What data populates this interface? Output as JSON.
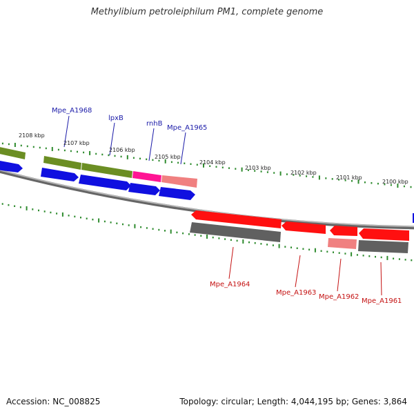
{
  "title": "Methylibium petroleiphilum PM1, complete genome",
  "footer": {
    "accession": "Accession: NC_008825",
    "summary": "Topology: circular; Length: 4,044,195 bp; Genes: 3,864"
  },
  "colors": {
    "backbone": "#808080",
    "tick": "#2e8b2e",
    "cds_forward": "#1010e0",
    "cds_reverse": "#ff1010",
    "gene_forward": "#6b8e23",
    "gene_reverse": "#606060",
    "rna": "#ff1493",
    "misc": "#f08080",
    "label_forward": "#1a1aa8",
    "label_reverse": "#c41010"
  },
  "kbp_labels": [
    "2108 kbp",
    "2107 kbp",
    "2106 kbp",
    "2105 kbp",
    "2104 kbp",
    "2103 kbp",
    "2102 kbp",
    "2101 kbp",
    "2100 kbp"
  ],
  "gene_labels_forward": [
    "Mpe_A1968",
    "lpxB",
    "rnhB",
    "Mpe_A1965"
  ],
  "gene_labels_reverse": [
    "Mpe_A1964",
    "Mpe_A1963",
    "Mpe_A1962",
    "Mpe_A1961"
  ]
}
